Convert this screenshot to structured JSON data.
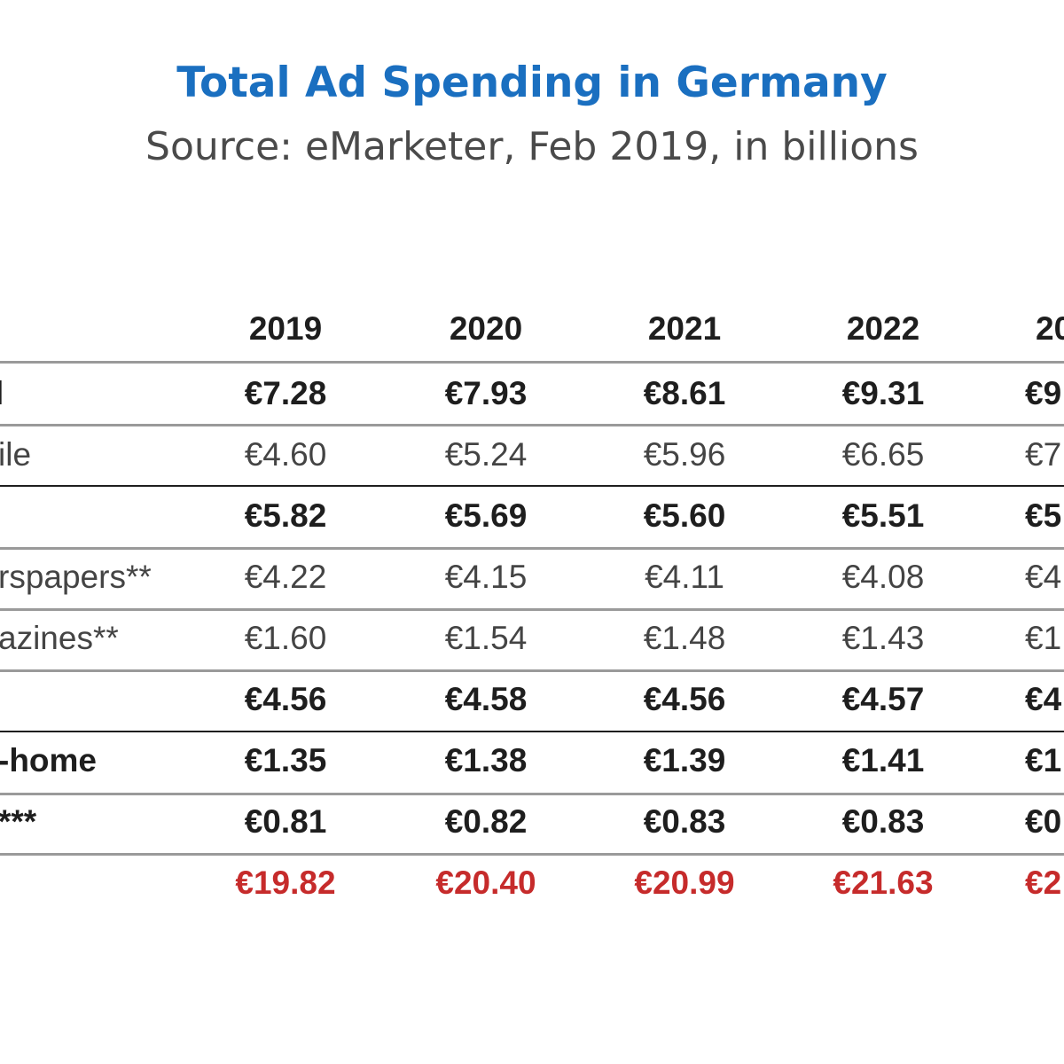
{
  "chart_data": {
    "type": "table",
    "title": "Total Ad Spending in Germany",
    "subtitle": "Source: eMarketer, Feb 2019, in billions",
    "columns": [
      "2019",
      "2020",
      "2021",
      "2022",
      "20"
    ],
    "rows": [
      {
        "label": "l",
        "style": "bold",
        "values": [
          "€7.28",
          "€7.93",
          "€8.61",
          "€9.31",
          "€9"
        ]
      },
      {
        "label": "ile",
        "style": "normal",
        "values": [
          "€4.60",
          "€5.24",
          "€5.96",
          "€6.65",
          "€7"
        ]
      },
      {
        "label": "",
        "style": "bold",
        "values": [
          "€5.82",
          "€5.69",
          "€5.60",
          "€5.51",
          "€5"
        ]
      },
      {
        "label": "rspapers**",
        "style": "normal",
        "values": [
          "€4.22",
          "€4.15",
          "€4.11",
          "€4.08",
          "€4"
        ]
      },
      {
        "label": "azines**",
        "style": "normal",
        "values": [
          "€1.60",
          "€1.54",
          "€1.48",
          "€1.43",
          "€1"
        ]
      },
      {
        "label": "",
        "style": "bold",
        "values": [
          "€4.56",
          "€4.58",
          "€4.56",
          "€4.57",
          "€4"
        ]
      },
      {
        "label": "-home",
        "style": "bold",
        "values": [
          "€1.35",
          "€1.38",
          "€1.39",
          "€1.41",
          "€1"
        ]
      },
      {
        "label": "***",
        "style": "bold",
        "values": [
          "€0.81",
          "€0.82",
          "€0.83",
          "€0.83",
          "€0"
        ]
      },
      {
        "label": "",
        "style": "total",
        "values": [
          "€19.82",
          "€20.40",
          "€20.99",
          "€21.63",
          "€2"
        ]
      }
    ],
    "colors": {
      "title": "#1a6fc0",
      "total": "#c62b2b",
      "rule": "#9a9a9a"
    }
  }
}
